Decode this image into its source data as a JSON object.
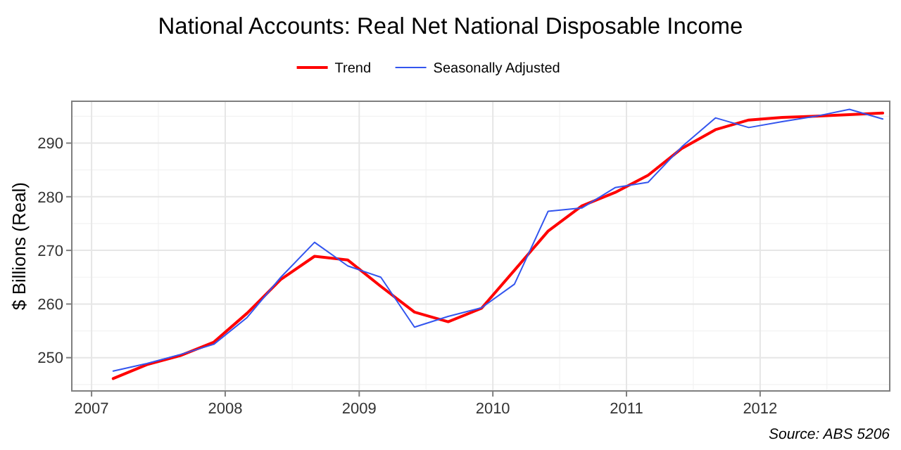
{
  "chart_data": {
    "type": "line",
    "title": "National Accounts: Real Net National Disposable Income",
    "ylabel": "$ Billions (Real)",
    "x": [
      "2007-03",
      "2007-06",
      "2007-09",
      "2007-12",
      "2008-03",
      "2008-06",
      "2008-09",
      "2008-12",
      "2009-03",
      "2009-06",
      "2009-09",
      "2009-12",
      "2010-03",
      "2010-06",
      "2010-09",
      "2010-12",
      "2011-03",
      "2011-06",
      "2011-09",
      "2011-12",
      "2012-03",
      "2012-06",
      "2012-09",
      "2012-12"
    ],
    "series": [
      {
        "name": "Trend",
        "color": "#ff0000",
        "values": [
          246.1,
          248.7,
          250.4,
          252.9,
          258.3,
          264.6,
          268.9,
          268.2,
          263.3,
          258.5,
          256.7,
          259.2,
          266.3,
          273.6,
          278.3,
          280.8,
          284.0,
          289.0,
          292.5,
          294.3,
          294.8,
          295.0,
          295.3,
          295.6
        ]
      },
      {
        "name": "Seasonally Adjusted",
        "color": "#3355ee",
        "values": [
          247.5,
          248.9,
          250.6,
          252.5,
          257.5,
          265.0,
          271.5,
          267.1,
          265.0,
          255.7,
          257.7,
          259.3,
          263.7,
          277.3,
          277.9,
          281.7,
          282.7,
          289.3,
          294.7,
          292.9,
          294.0,
          295.0,
          296.3,
          294.5
        ]
      }
    ],
    "xlim": [
      "2006-11-08",
      "2012-12-20"
    ],
    "xticks": [
      {
        "value": "2007-01-01",
        "label": "2007"
      },
      {
        "value": "2008-01-01",
        "label": "2008"
      },
      {
        "value": "2009-01-01",
        "label": "2009"
      },
      {
        "value": "2010-01-01",
        "label": "2010"
      },
      {
        "value": "2011-01-01",
        "label": "2011"
      },
      {
        "value": "2012-01-01",
        "label": "2012"
      }
    ],
    "ylim": [
      243.8,
      297.8
    ],
    "yticks": [
      250,
      260,
      270,
      280,
      290
    ],
    "grid": true,
    "legend": "top",
    "line_style": "solid",
    "marker": "none",
    "annotations": [
      "Source: ABS 5206"
    ]
  }
}
